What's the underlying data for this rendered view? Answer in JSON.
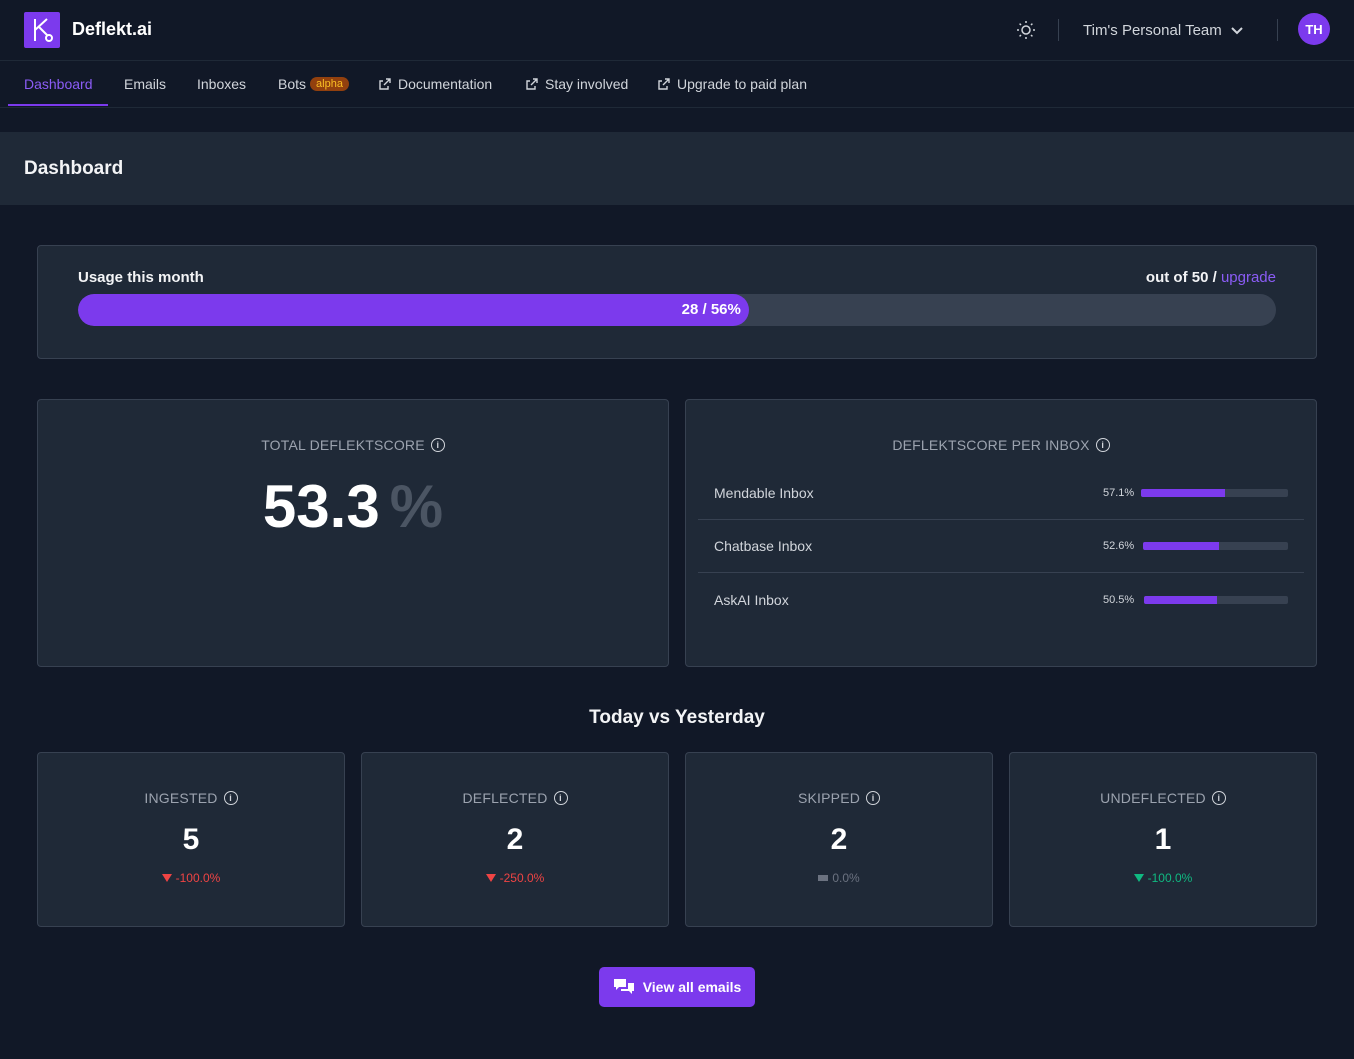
{
  "app": {
    "brand": "Deflekt.ai"
  },
  "header": {
    "team_name": "Tim's Personal Team",
    "avatar_initials": "TH"
  },
  "nav": {
    "items": [
      {
        "label": "Dashboard",
        "active": true
      },
      {
        "label": "Emails"
      },
      {
        "label": "Inboxes"
      },
      {
        "label": "Bots",
        "badge": "alpha"
      },
      {
        "label": "Documentation",
        "external": true
      },
      {
        "label": "Stay involved",
        "external": true
      },
      {
        "label": "Upgrade to paid plan",
        "external": true
      }
    ]
  },
  "page": {
    "title": "Dashboard"
  },
  "usage": {
    "label": "Usage this month",
    "limit_text": "out of 50 /",
    "upgrade_link": "upgrade",
    "progress_text": "28 / 56%",
    "progress_fraction": 0.56
  },
  "total_score": {
    "title": "TOTAL DEFLEKTSCORE",
    "value": "53.3",
    "unit": "%"
  },
  "per_inbox": {
    "title": "DEFLEKTSCORE PER INBOX",
    "rows": [
      {
        "name": "Mendable Inbox",
        "pct": "57.1%",
        "fraction": 0.571
      },
      {
        "name": "Chatbase Inbox",
        "pct": "52.6%",
        "fraction": 0.526
      },
      {
        "name": "AskAI Inbox",
        "pct": "50.5%",
        "fraction": 0.505
      }
    ]
  },
  "comparison": {
    "title": "Today vs Yesterday",
    "metrics": [
      {
        "label": "INGESTED",
        "value": "5",
        "change": "-100.0%",
        "trend": "down",
        "color": "#ef4444"
      },
      {
        "label": "DEFLECTED",
        "value": "2",
        "change": "-250.0%",
        "trend": "down",
        "color": "#ef4444"
      },
      {
        "label": "SKIPPED",
        "value": "2",
        "change": "0.0%",
        "trend": "flat",
        "color": "#6b7280"
      },
      {
        "label": "UNDEFLECTED",
        "value": "1",
        "change": "-100.0%",
        "trend": "down",
        "color": "#10b981"
      }
    ]
  },
  "actions": {
    "view_all_emails": "View all emails"
  },
  "colors": {
    "accent": "#7c3aed",
    "background": "#111827",
    "card": "#1f2937"
  }
}
